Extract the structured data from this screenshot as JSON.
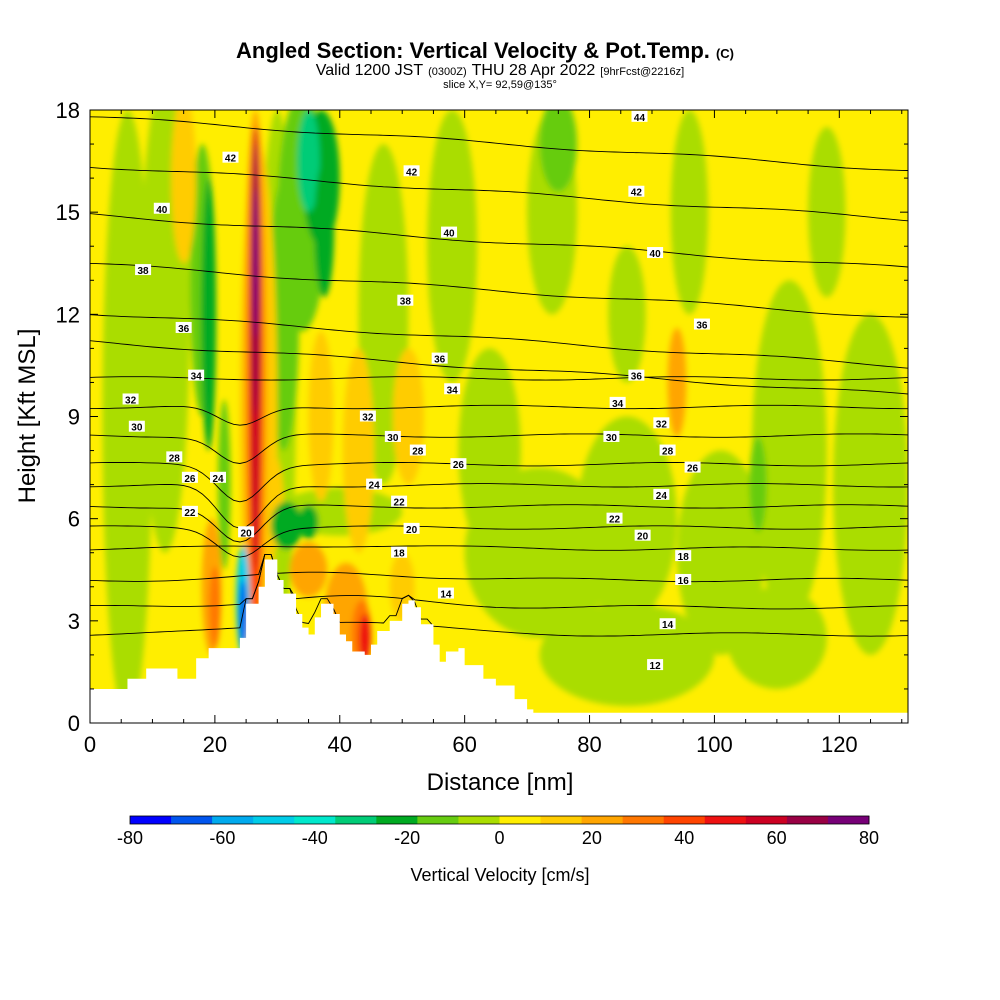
{
  "title": {
    "main": "Angled Section: Vertical Velocity & Pot.Temp.",
    "main_suffix": "(C)",
    "valid_a": "Valid 1200 JST",
    "valid_b": "(0300Z)",
    "valid_c": "THU 28 Apr 2022",
    "valid_d": "[9hrFcst@2216z]",
    "slice": "slice X,Y= 92,59@135°"
  },
  "chart_data": {
    "type": "heatmap",
    "xlabel": "Distance [nm]",
    "ylabel": "Height [Kft MSL]",
    "xlim": [
      0,
      131
    ],
    "ylim": [
      0,
      18
    ],
    "x_ticks": [
      "0",
      "20",
      "40",
      "60",
      "80",
      "100",
      "120"
    ],
    "x_tick_values": [
      0,
      20,
      40,
      60,
      80,
      100,
      120
    ],
    "y_ticks": [
      "0",
      "3",
      "6",
      "9",
      "12",
      "15",
      "18"
    ],
    "y_tick_values": [
      0,
      3,
      6,
      9,
      12,
      15,
      18
    ],
    "colorbar": {
      "label": "Vertical Velocity [cm/s]",
      "tick_labels": [
        "-80",
        "-60",
        "-40",
        "-20",
        "0",
        "20",
        "40",
        "60",
        "80"
      ],
      "tick_values": [
        -80,
        -60,
        -40,
        -20,
        0,
        20,
        40,
        60,
        80
      ],
      "colors": [
        "#0000ff",
        "#0055ee",
        "#00aaee",
        "#00cce8",
        "#00e8cc",
        "#00cc77",
        "#00aa22",
        "#66cc11",
        "#aadd00",
        "#ffee00",
        "#ffcc00",
        "#ffa500",
        "#ff7700",
        "#ff4400",
        "#ee1111",
        "#cc0022",
        "#990044",
        "#770077"
      ]
    },
    "terrain_nm_kft": [
      [
        0,
        1.0
      ],
      [
        5,
        1.0
      ],
      [
        6,
        1.3
      ],
      [
        9,
        1.6
      ],
      [
        13,
        1.6
      ],
      [
        14,
        1.3
      ],
      [
        16,
        1.3
      ],
      [
        17,
        1.9
      ],
      [
        19,
        2.2
      ],
      [
        24,
        2.5
      ],
      [
        25,
        3.5
      ],
      [
        27,
        4.0
      ],
      [
        28,
        4.8
      ],
      [
        30,
        4.2
      ],
      [
        31,
        3.8
      ],
      [
        33,
        3.2
      ],
      [
        34,
        2.8
      ],
      [
        35,
        2.6
      ],
      [
        36,
        3.1
      ],
      [
        37,
        3.5
      ],
      [
        39,
        3.2
      ],
      [
        40,
        2.6
      ],
      [
        41,
        2.4
      ],
      [
        42,
        2.1
      ],
      [
        44,
        2.0
      ],
      [
        45,
        2.3
      ],
      [
        46,
        2.7
      ],
      [
        48,
        3.0
      ],
      [
        50,
        3.5
      ],
      [
        51,
        3.6
      ],
      [
        52,
        3.4
      ],
      [
        53,
        2.9
      ],
      [
        55,
        2.3
      ],
      [
        56,
        1.8
      ],
      [
        57,
        2.1
      ],
      [
        59,
        2.2
      ],
      [
        60,
        1.7
      ],
      [
        62,
        1.7
      ],
      [
        63,
        1.3
      ],
      [
        65,
        1.1
      ],
      [
        68,
        0.7
      ],
      [
        70,
        0.4
      ],
      [
        71,
        0.3
      ],
      [
        131,
        0.3
      ]
    ],
    "theta_contours_C": [
      12,
      14,
      16,
      18,
      20,
      22,
      24,
      26,
      28,
      30,
      32,
      34,
      36,
      38,
      40,
      42,
      44
    ],
    "contour_labels": [
      {
        "text": "44",
        "x": 88,
        "y": 17.8
      },
      {
        "text": "42",
        "x": 22.5,
        "y": 16.6
      },
      {
        "text": "42",
        "x": 51.5,
        "y": 16.2
      },
      {
        "text": "42",
        "x": 87.5,
        "y": 15.6
      },
      {
        "text": "40",
        "x": 11.5,
        "y": 15.1
      },
      {
        "text": "40",
        "x": 57.5,
        "y": 14.4
      },
      {
        "text": "40",
        "x": 90.5,
        "y": 13.8
      },
      {
        "text": "38",
        "x": 8.5,
        "y": 13.3
      },
      {
        "text": "38",
        "x": 50.5,
        "y": 12.4
      },
      {
        "text": "36",
        "x": 15,
        "y": 11.6
      },
      {
        "text": "36",
        "x": 98,
        "y": 11.7
      },
      {
        "text": "36",
        "x": 56,
        "y": 10.7
      },
      {
        "text": "36",
        "x": 87.5,
        "y": 10.2
      },
      {
        "text": "34",
        "x": 17,
        "y": 10.2
      },
      {
        "text": "34",
        "x": 58,
        "y": 9.8
      },
      {
        "text": "34",
        "x": 84.5,
        "y": 9.4
      },
      {
        "text": "32",
        "x": 6.5,
        "y": 9.5
      },
      {
        "text": "32",
        "x": 44.5,
        "y": 9.0
      },
      {
        "text": "32",
        "x": 91.5,
        "y": 8.8
      },
      {
        "text": "30",
        "x": 7.5,
        "y": 8.7
      },
      {
        "text": "30",
        "x": 48.5,
        "y": 8.4
      },
      {
        "text": "30",
        "x": 83.5,
        "y": 8.4
      },
      {
        "text": "28",
        "x": 13.5,
        "y": 7.8
      },
      {
        "text": "28",
        "x": 52.5,
        "y": 8.0
      },
      {
        "text": "28",
        "x": 92.5,
        "y": 8.0
      },
      {
        "text": "26",
        "x": 16,
        "y": 7.2
      },
      {
        "text": "26",
        "x": 59,
        "y": 7.6
      },
      {
        "text": "26",
        "x": 96.5,
        "y": 7.5
      },
      {
        "text": "24",
        "x": 20.5,
        "y": 7.2
      },
      {
        "text": "24",
        "x": 45.5,
        "y": 7.0
      },
      {
        "text": "24",
        "x": 91.5,
        "y": 6.7
      },
      {
        "text": "22",
        "x": 16,
        "y": 6.2
      },
      {
        "text": "22",
        "x": 49.5,
        "y": 6.5
      },
      {
        "text": "22",
        "x": 84,
        "y": 6.0
      },
      {
        "text": "20",
        "x": 25,
        "y": 5.6
      },
      {
        "text": "20",
        "x": 51.5,
        "y": 5.7
      },
      {
        "text": "20",
        "x": 88.5,
        "y": 5.5
      },
      {
        "text": "18",
        "x": 49.5,
        "y": 5.0
      },
      {
        "text": "18",
        "x": 95,
        "y": 4.9
      },
      {
        "text": "16",
        "x": 95,
        "y": 4.2
      },
      {
        "text": "14",
        "x": 57,
        "y": 3.8
      },
      {
        "text": "14",
        "x": 92.5,
        "y": 2.9
      },
      {
        "text": "12",
        "x": 90.5,
        "y": 1.7
      }
    ],
    "features": [
      {
        "kind": "updraft",
        "x": 26.5,
        "y": 10.5,
        "peak_cms": 80
      },
      {
        "kind": "updraft",
        "x": 43.5,
        "y": 2.7,
        "peak_cms": 50
      },
      {
        "kind": "updraft",
        "x": 19.5,
        "y": 4.0,
        "peak_cms": 35
      },
      {
        "kind": "downdraft",
        "x": 24.5,
        "y": 3.5,
        "peak_cms": -55
      },
      {
        "kind": "downdraft",
        "x": 37.0,
        "y": 16.0,
        "peak_cms": -40
      },
      {
        "kind": "downdraft",
        "x": 19.0,
        "y": 12.0,
        "peak_cms": -20
      },
      {
        "kind": "downdraft",
        "x": 31.5,
        "y": 5.8,
        "peak_cms": -20
      }
    ]
  }
}
